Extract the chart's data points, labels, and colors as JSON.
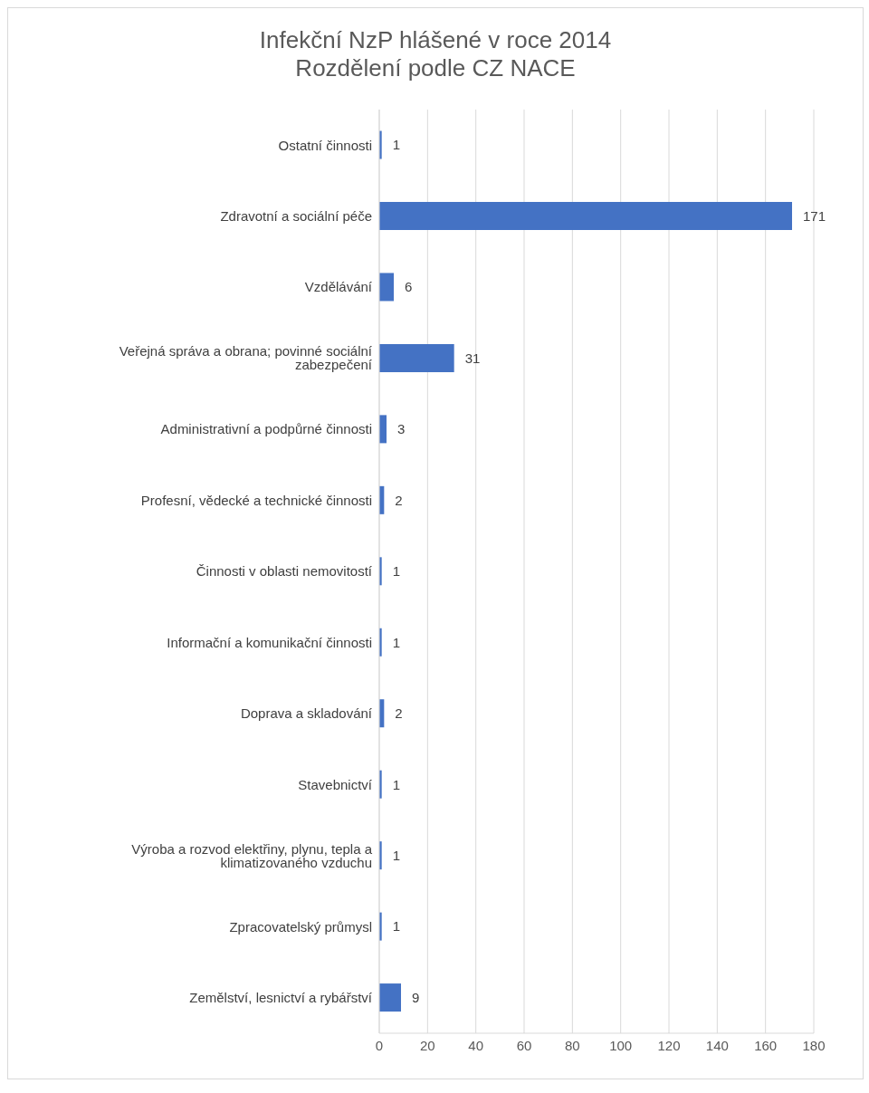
{
  "chart_data": {
    "type": "bar",
    "orientation": "horizontal",
    "title": "Infekční NzP hlášené v roce 2014",
    "subtitle": "Rozdělení podle CZ NACE",
    "categories": [
      "Ostatní činnosti",
      "Zdravotní a sociální péče",
      "Vzdělávání",
      "Veřejná správa a obrana; povinné sociální zabezpečení",
      "Administrativní a podpůrné činnosti",
      "Profesní, vědecké a technické činnosti",
      "Činnosti v oblasti nemovitostí",
      "Informační a komunikační činnosti",
      "Doprava a skladování",
      "Stavebnictví",
      "Výroba a rozvod elektřiny, plynu, tepla a klimatizovaného vzduchu",
      "Zpracovatelský průmysl",
      "Zemělství, lesnictví a rybářství"
    ],
    "values": [
      1,
      171,
      6,
      31,
      3,
      2,
      1,
      1,
      2,
      1,
      1,
      1,
      9
    ],
    "color": "#4472c4",
    "xlim": [
      0,
      180
    ],
    "xticks": [
      0,
      20,
      40,
      60,
      80,
      100,
      120,
      140,
      160,
      180
    ],
    "grid": "x",
    "data_labels": true
  }
}
